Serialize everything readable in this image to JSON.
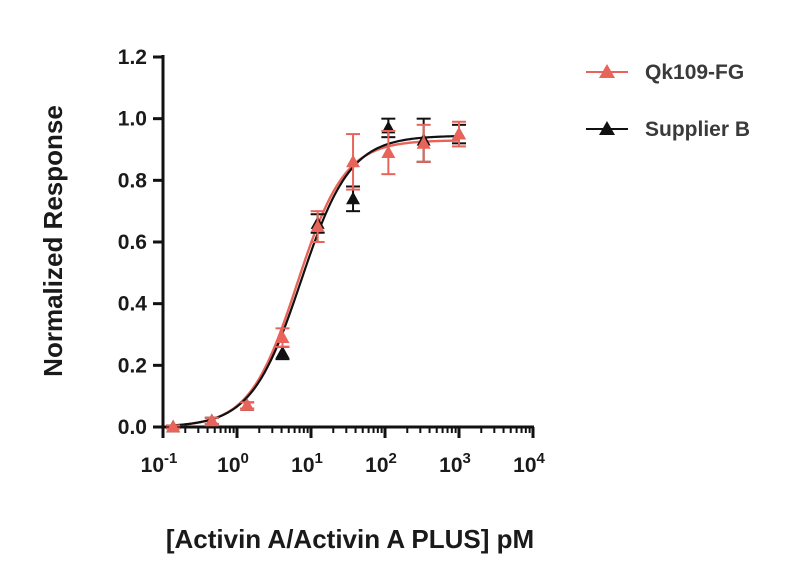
{
  "chart_data": {
    "type": "scatter",
    "xlabel": "[Activin A/Activin A PLUS] pM",
    "ylabel": "Normalized Response",
    "x_scale": "log10",
    "xlim": [
      0.1,
      10000
    ],
    "ylim": [
      0.0,
      1.2
    ],
    "x_ticks": [
      {
        "value": 0.1,
        "base": "10",
        "exp": "-1"
      },
      {
        "value": 1,
        "base": "10",
        "exp": "0"
      },
      {
        "value": 10,
        "base": "10",
        "exp": "1"
      },
      {
        "value": 100,
        "base": "10",
        "exp": "2"
      },
      {
        "value": 1000,
        "base": "10",
        "exp": "3"
      },
      {
        "value": 10000,
        "base": "10",
        "exp": "4"
      }
    ],
    "y_ticks": [
      "0.0",
      "0.2",
      "0.4",
      "0.6",
      "0.8",
      "1.0",
      "1.2"
    ],
    "grid": false,
    "legend_position": "top-right",
    "series": [
      {
        "name": "Qk109-FG",
        "color": "#e8645a",
        "marker": "triangle",
        "x": [
          0.137,
          0.457,
          1.37,
          4.12,
          12.3,
          37.0,
          111,
          333,
          1000
        ],
        "y": [
          0.0,
          0.02,
          0.07,
          0.29,
          0.65,
          0.86,
          0.89,
          0.92,
          0.95
        ],
        "error": [
          0.005,
          0.01,
          0.01,
          0.03,
          0.05,
          0.09,
          0.07,
          0.06,
          0.04
        ],
        "fit": {
          "bottom": 0.0,
          "top": 0.93,
          "ec50": 6.5,
          "hill": 1.35
        }
      },
      {
        "name": "Supplier B",
        "color": "#111111",
        "marker": "triangle",
        "x": [
          0.137,
          0.457,
          1.37,
          4.12,
          12.3,
          37.0,
          111,
          333,
          1000
        ],
        "y": [
          0.0,
          0.02,
          0.07,
          0.24,
          0.66,
          0.74,
          0.97,
          0.93,
          0.95
        ],
        "error": [
          0.005,
          0.01,
          0.01,
          0.02,
          0.03,
          0.04,
          0.03,
          0.07,
          0.03
        ],
        "fit": {
          "bottom": 0.0,
          "top": 0.945,
          "ec50": 7.3,
          "hill": 1.3
        }
      }
    ]
  }
}
